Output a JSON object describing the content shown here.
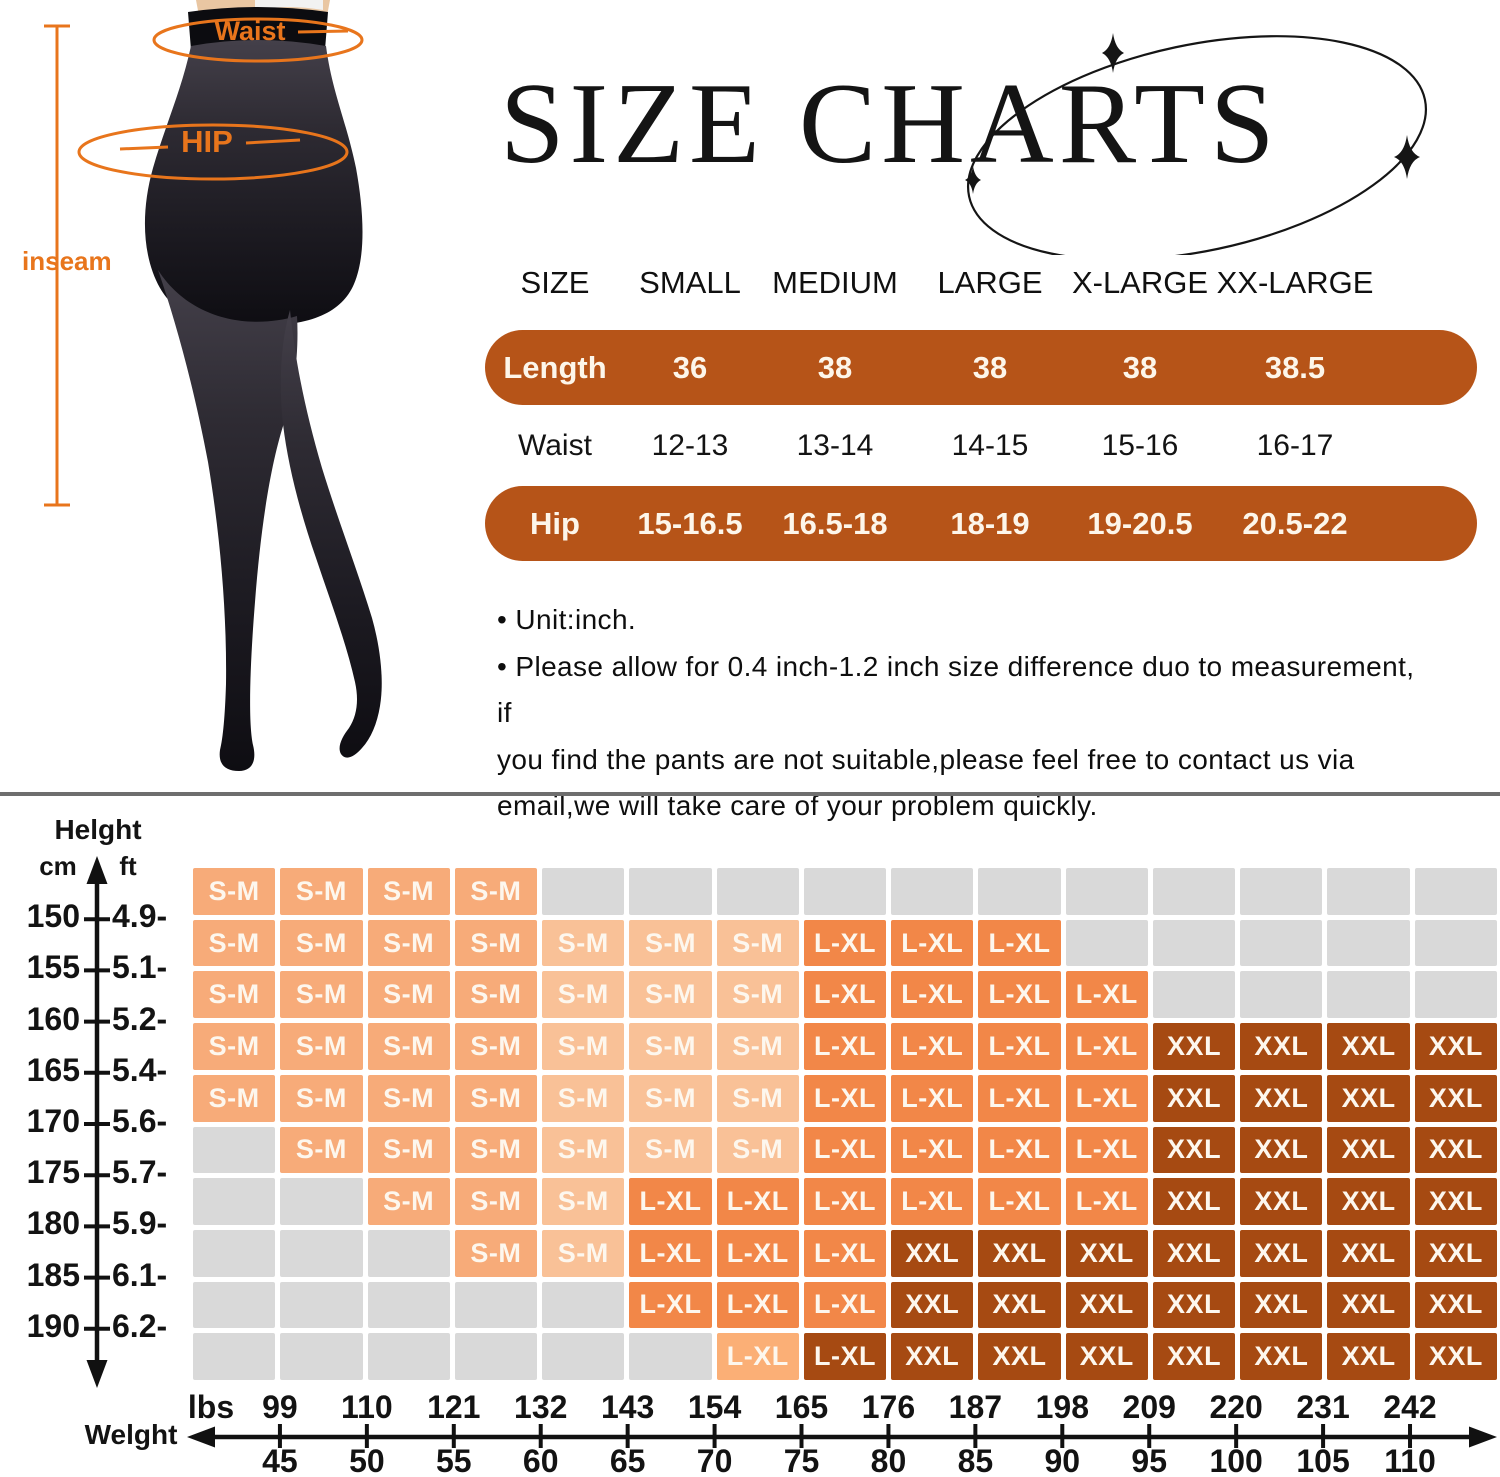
{
  "title": {
    "text": "SIZE CHARTS"
  },
  "figure": {
    "waist_label": "Waist",
    "hip_label": "HIP",
    "inseam_label": "inseam",
    "accent_color": "#e8751c"
  },
  "size_table": {
    "headers": [
      "SIZE",
      "SMALL",
      "MEDIUM",
      "LARGE",
      "X-LARGE",
      "XX-LARGE"
    ],
    "bar_color": "#b65418",
    "rows": [
      {
        "label": "Length",
        "style": "bar",
        "values": [
          "36",
          "38",
          "38",
          "38",
          "38.5"
        ]
      },
      {
        "label": "Waist",
        "style": "plain",
        "values": [
          "12-13",
          "13-14",
          "14-15",
          "15-16",
          "16-17"
        ]
      },
      {
        "label": "Hip",
        "style": "bar",
        "values": [
          "15-16.5",
          "16.5-18",
          "18-19",
          "19-20.5",
          "20.5-22"
        ]
      }
    ]
  },
  "notes": {
    "lines": [
      "• Unit:inch.",
      "• Please allow for 0.4 inch-1.2 inch size difference duo to measurement, if",
      "you find the pants are not suitable,please feel free to contact us via",
      "email,we will take care of your problem quickly."
    ]
  },
  "chart_data": {
    "type": "heatmap",
    "title": "Height / Weight size recommendation grid",
    "y_axis": {
      "label": "Helght",
      "unit_left": "cm",
      "unit_right": "ft",
      "cm": [
        "150",
        "155",
        "160",
        "165",
        "170",
        "175",
        "180",
        "185",
        "190"
      ],
      "ft": [
        "4.9-",
        "5.1-",
        "5.2-",
        "5.4-",
        "5.6-",
        "5.7-",
        "5.9-",
        "6.1-",
        "6.2-"
      ]
    },
    "x_axis": {
      "label": "Welght",
      "unit": "lbs",
      "lbs": [
        "99",
        "110",
        "121",
        "132",
        "143",
        "154",
        "165",
        "176",
        "187",
        "198",
        "209",
        "220",
        "231",
        "242"
      ],
      "kg": [
        "45",
        "50",
        "55",
        "60",
        "65",
        "70",
        "75",
        "80",
        "85",
        "90",
        "95",
        "100",
        "105",
        "110"
      ]
    },
    "cell_labels": {
      "sm": "S-M",
      "sm_light": "S-M",
      "lxl": "L-XL",
      "lxl_light": "L-XL",
      "lxl_dark": "L-XL",
      "xxl": "XXL",
      "empty": ""
    },
    "colors": {
      "sm": "#f7ab79",
      "sm_light": "#f9c197",
      "lxl": "#f28748",
      "lxl_light": "#fbaf76",
      "lxl_dark": "#a64a12",
      "xxl": "#a64a12",
      "empty": "#d9d9d9"
    },
    "grid": [
      [
        "sm",
        "sm",
        "sm",
        "sm",
        "",
        "",
        "",
        "",
        "",
        "",
        "",
        "",
        "",
        "",
        ""
      ],
      [
        "sm",
        "sm",
        "sm",
        "sm",
        "sm_light",
        "sm_light",
        "sm_light",
        "lxl",
        "lxl",
        "lxl",
        "",
        "",
        "",
        "",
        ""
      ],
      [
        "sm",
        "sm",
        "sm",
        "sm",
        "sm_light",
        "sm_light",
        "sm_light",
        "lxl",
        "lxl",
        "lxl",
        "lxl",
        "",
        "",
        "",
        ""
      ],
      [
        "sm",
        "sm",
        "sm",
        "sm",
        "sm_light",
        "sm_light",
        "sm_light",
        "lxl",
        "lxl",
        "lxl",
        "lxl",
        "xxl",
        "xxl",
        "xxl",
        "xxl"
      ],
      [
        "sm",
        "sm",
        "sm",
        "sm",
        "sm_light",
        "sm_light",
        "sm_light",
        "lxl",
        "lxl",
        "lxl",
        "lxl",
        "xxl",
        "xxl",
        "xxl",
        "xxl"
      ],
      [
        "",
        "sm",
        "sm",
        "sm",
        "sm_light",
        "sm_light",
        "sm_light",
        "lxl",
        "lxl",
        "lxl",
        "lxl",
        "xxl",
        "xxl",
        "xxl",
        "xxl"
      ],
      [
        "",
        "",
        "sm",
        "sm",
        "sm_light",
        "lxl",
        "lxl",
        "lxl",
        "lxl",
        "lxl",
        "lxl",
        "xxl",
        "xxl",
        "xxl",
        "xxl"
      ],
      [
        "",
        "",
        "",
        "sm",
        "sm_light",
        "lxl",
        "lxl",
        "lxl",
        "xxl",
        "xxl",
        "xxl",
        "xxl",
        "xxl",
        "xxl",
        "xxl"
      ],
      [
        "",
        "",
        "",
        "",
        "",
        "lxl",
        "lxl",
        "lxl",
        "xxl",
        "xxl",
        "xxl",
        "xxl",
        "xxl",
        "xxl",
        "xxl"
      ],
      [
        "",
        "",
        "",
        "",
        "",
        "",
        "lxl_light",
        "lxl_dark",
        "xxl",
        "xxl",
        "xxl",
        "xxl",
        "xxl",
        "xxl",
        "xxl"
      ]
    ]
  }
}
